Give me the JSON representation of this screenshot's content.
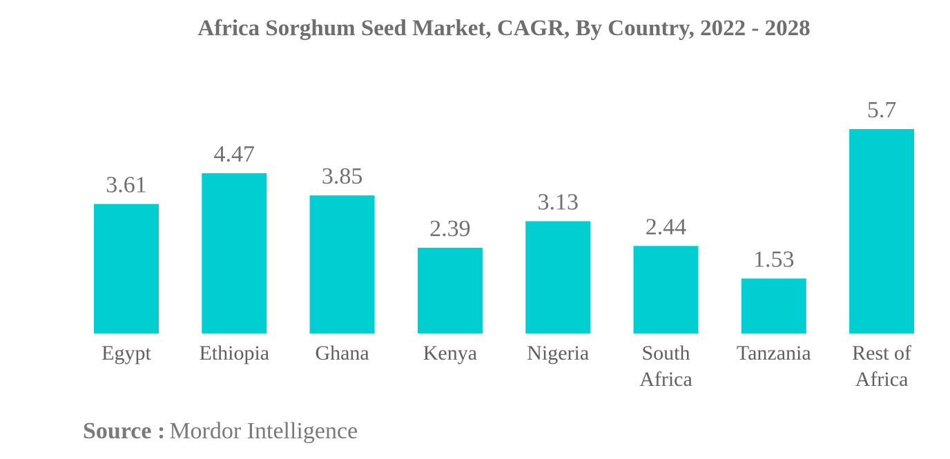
{
  "colors": {
    "bar": "#00ced1",
    "title": "#6e6e6e",
    "text": "#707070"
  },
  "chart_data": {
    "type": "bar",
    "title": "Africa Sorghum Seed Market, CAGR, By Country, 2022 - 2028",
    "xlabel": "",
    "ylabel": "",
    "categories": [
      "Egypt",
      "Ethiopia",
      "Ghana",
      "Kenya",
      "Nigeria",
      "South Africa",
      "Tanzania",
      "Rest of Africa"
    ],
    "category_lines": [
      [
        "Egypt"
      ],
      [
        "Ethiopia"
      ],
      [
        "Ghana"
      ],
      [
        "Kenya"
      ],
      [
        "Nigeria"
      ],
      [
        "South",
        "Africa"
      ],
      [
        "Tanzania"
      ],
      [
        "Rest of",
        "Africa"
      ]
    ],
    "values": [
      3.61,
      4.47,
      3.85,
      2.39,
      3.13,
      2.44,
      1.53,
      5.7
    ],
    "value_labels": [
      "3.61",
      "4.47",
      "3.85",
      "2.39",
      "3.13",
      "2.44",
      "1.53",
      "5.7"
    ],
    "ylim": [
      0,
      5.7
    ],
    "grid": false,
    "legend": "none"
  },
  "source": {
    "label": "Source :",
    "text": "Mordor Intelligence"
  }
}
